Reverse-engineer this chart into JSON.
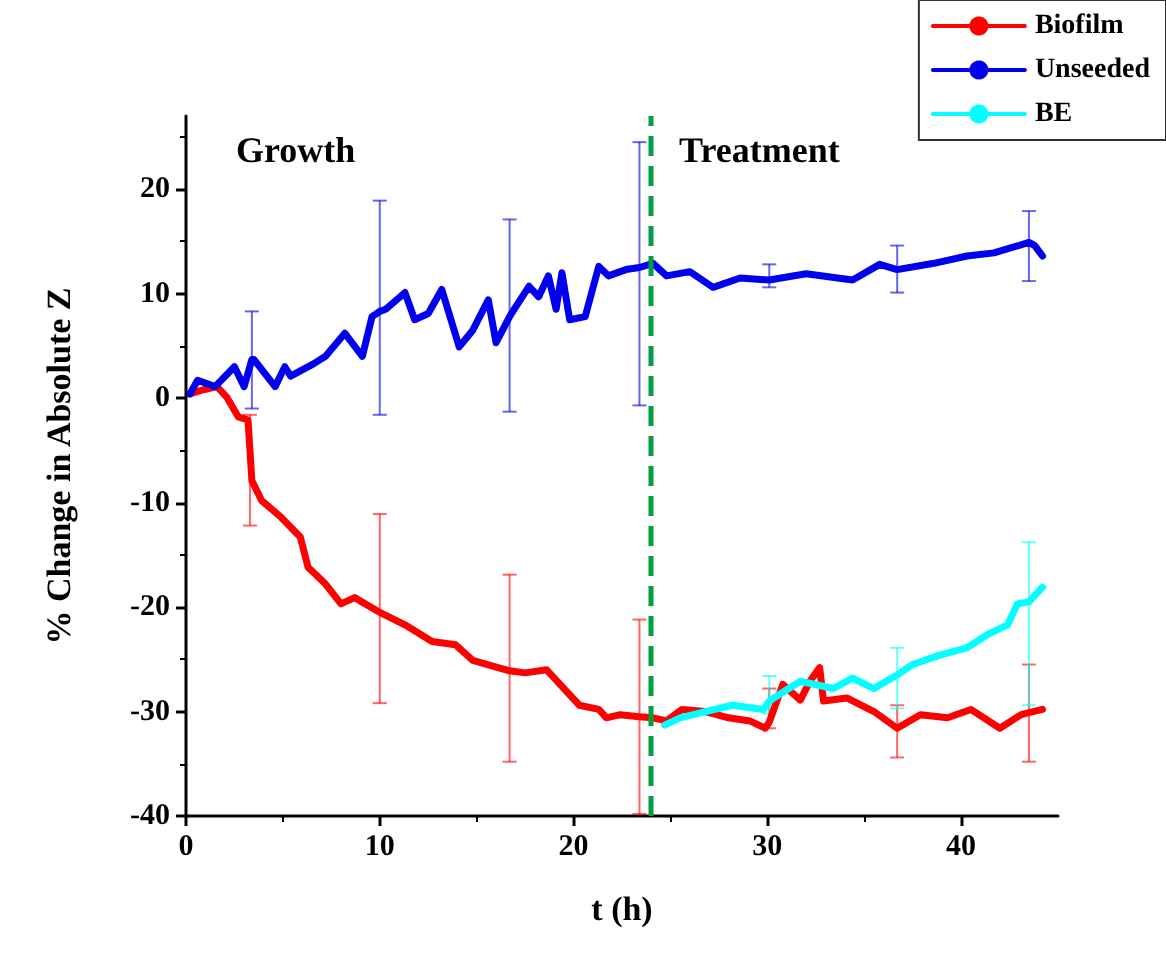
{
  "chart_data": {
    "type": "line",
    "xlabel": "t (h)",
    "ylabel": "% Change in Absolute Z",
    "xlim": [
      0,
      45
    ],
    "xticks": [
      0,
      10,
      20,
      30,
      40
    ],
    "ylim": [
      -40,
      27
    ],
    "yticks": [
      -40,
      -30,
      -20,
      -10,
      0,
      10,
      20
    ],
    "grid": false,
    "legend": "top right",
    "marker": "none",
    "line_style": "solid",
    "annotations": [
      "Growth",
      "Treatment"
    ],
    "ref_lines": [
      {
        "axis": "x",
        "value": 24,
        "color": "#00a040",
        "line_style": "dashed"
      }
    ],
    "series": [
      {
        "name": "Biofilm",
        "color": "#ff0000",
        "x": [
          0.2,
          0.9,
          1.6,
          2.1,
          2.7,
          3.2,
          3.3,
          3.4,
          3.9,
          4.9,
          5.9,
          6.3,
          7.2,
          8.0,
          8.7,
          9.9,
          10.0,
          11.3,
          12.7,
          13.9,
          14.8,
          16.1,
          16.7,
          17.5,
          18.6,
          19.4,
          20.3,
          21.3,
          21.7,
          22.4,
          23.4,
          24.1,
          24.8,
          25.6,
          26.8,
          28.0,
          29.1,
          29.9,
          30.1,
          30.8,
          31.7,
          32.2,
          32.7,
          32.9,
          34.1,
          35.5,
          36.7,
          37.9,
          39.3,
          40.5,
          42.0,
          43.1,
          43.5,
          44.2
        ],
        "values": [
          0.4,
          0.8,
          1.1,
          0.1,
          -1.8,
          -2.1,
          -5.0,
          -7.9,
          -9.8,
          -11.4,
          -13.3,
          -16.2,
          -17.8,
          -19.7,
          -19.1,
          -20.4,
          -20.5,
          -21.7,
          -23.3,
          -23.6,
          -25.1,
          -25.8,
          -26.1,
          -26.3,
          -26.0,
          -27.6,
          -29.4,
          -29.8,
          -30.6,
          -30.3,
          -30.5,
          -30.6,
          -30.9,
          -29.8,
          -30.0,
          -30.6,
          -30.9,
          -31.6,
          -31.0,
          -27.4,
          -28.9,
          -27.1,
          -25.8,
          -29.0,
          -28.7,
          -30.0,
          -31.6,
          -30.3,
          -30.6,
          -29.8,
          -31.6,
          -30.3,
          -30.1,
          -29.8
        ],
        "errors": [
          null,
          null,
          null,
          null,
          null,
          null,
          [
            -12.2,
            -1.6
          ],
          null,
          null,
          null,
          null,
          null,
          null,
          null,
          null,
          null,
          [
            -29.2,
            -11.1
          ],
          null,
          null,
          null,
          null,
          null,
          [
            -34.8,
            -16.9
          ],
          null,
          null,
          null,
          null,
          null,
          null,
          null,
          [
            -39.8,
            -21.2
          ],
          null,
          null,
          null,
          null,
          null,
          null,
          null,
          [
            -31.6,
            -27.8
          ],
          null,
          null,
          null,
          null,
          null,
          null,
          null,
          [
            -34.4,
            -29.4
          ],
          null,
          null,
          null,
          null,
          null,
          [
            -34.8,
            -25.5
          ],
          null
        ]
      },
      {
        "name": "Unseeded",
        "color": "#0000ee",
        "x": [
          0.2,
          0.6,
          1.5,
          2.5,
          3.0,
          3.4,
          3.5,
          4.6,
          5.1,
          5.4,
          6.6,
          7.2,
          8.2,
          9.1,
          9.6,
          10.0,
          10.3,
          11.3,
          11.8,
          12.5,
          13.2,
          14.1,
          14.8,
          15.6,
          16.0,
          16.7,
          16.8,
          17.7,
          18.2,
          18.7,
          19.1,
          19.4,
          19.8,
          20.6,
          21.3,
          21.8,
          22.7,
          23.4,
          24.1,
          24.8,
          26.0,
          27.2,
          28.6,
          30.1,
          32.0,
          34.4,
          35.8,
          36.7,
          38.6,
          40.3,
          41.7,
          43.5,
          43.8,
          44.2
        ],
        "values": [
          0.4,
          1.7,
          1.1,
          3.0,
          1.1,
          3.7,
          3.7,
          1.1,
          3.0,
          2.1,
          3.3,
          4.0,
          6.2,
          4.0,
          7.8,
          8.3,
          8.5,
          10.1,
          7.5,
          8.1,
          10.4,
          4.9,
          6.5,
          9.4,
          5.3,
          7.8,
          8.1,
          10.7,
          9.7,
          11.7,
          8.5,
          12.0,
          7.5,
          7.8,
          12.6,
          11.7,
          12.3,
          12.5,
          12.9,
          11.7,
          12.1,
          10.6,
          11.5,
          11.3,
          11.9,
          11.3,
          12.8,
          12.3,
          12.9,
          13.6,
          13.9,
          14.9,
          14.6,
          13.6
        ],
        "errors": [
          null,
          null,
          null,
          null,
          null,
          [
            -1.0,
            8.3
          ],
          null,
          null,
          null,
          null,
          null,
          null,
          null,
          null,
          null,
          [
            -1.6,
            18.9
          ],
          null,
          null,
          null,
          null,
          null,
          null,
          null,
          null,
          null,
          [
            -1.3,
            17.1
          ],
          null,
          null,
          null,
          null,
          null,
          null,
          null,
          null,
          null,
          null,
          null,
          [
            -0.7,
            24.5
          ],
          null,
          null,
          null,
          null,
          null,
          [
            10.6,
            12.8
          ],
          null,
          null,
          null,
          [
            10.1,
            14.6
          ],
          null,
          null,
          null,
          [
            11.2,
            17.9
          ],
          null,
          null
        ]
      },
      {
        "name": "BE",
        "color": "#00ffff",
        "x": [
          24.7,
          25.5,
          26.8,
          28.2,
          29.8,
          30.1,
          30.6,
          31.7,
          33.4,
          34.4,
          35.5,
          36.7,
          37.5,
          38.9,
          40.3,
          41.4,
          42.4,
          42.9,
          43.5,
          44.2
        ],
        "values": [
          -31.3,
          -30.6,
          -30.0,
          -29.4,
          -29.8,
          -29.0,
          -28.4,
          -27.1,
          -27.8,
          -26.8,
          -27.8,
          -26.5,
          -25.5,
          -24.6,
          -23.9,
          -22.6,
          -21.7,
          -19.7,
          -19.5,
          -18.1
        ],
        "errors": [
          null,
          null,
          null,
          null,
          null,
          [
            -30.2,
            -26.6
          ],
          null,
          null,
          null,
          null,
          null,
          [
            -29.7,
            -23.9
          ],
          null,
          null,
          null,
          null,
          null,
          null,
          [
            -29.4,
            -13.8
          ],
          null
        ]
      }
    ]
  }
}
